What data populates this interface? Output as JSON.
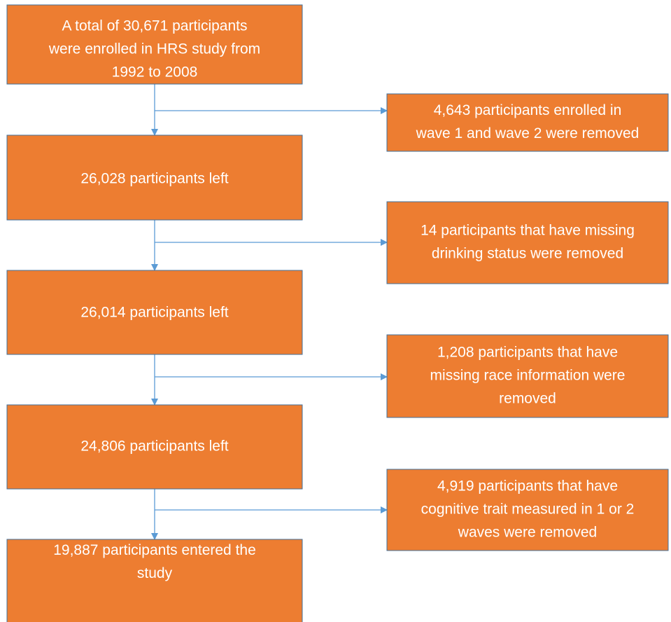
{
  "nodes": [
    {
      "lines": [
        "A total of 30,671 participants",
        "were enrolled in HRS study from",
        "1992 to 2008"
      ]
    },
    {
      "lines": [
        "26,028 participants left"
      ]
    },
    {
      "lines": [
        "26,014 participants left"
      ]
    },
    {
      "lines": [
        "24,806 participants left"
      ]
    },
    {
      "lines": [
        "19,887 participants entered the",
        "study"
      ]
    }
  ],
  "exclusions": [
    {
      "lines": [
        "4,643 participants enrolled in",
        "wave 1 and wave 2 were removed"
      ]
    },
    {
      "lines": [
        "14 participants that have missing",
        "drinking status were removed"
      ]
    },
    {
      "lines": [
        "1,208 participants that have",
        "missing race information were",
        "removed"
      ]
    },
    {
      "lines": [
        "4,919 participants that have",
        "cognitive trait measured in 1 or 2",
        "waves were removed"
      ]
    }
  ]
}
